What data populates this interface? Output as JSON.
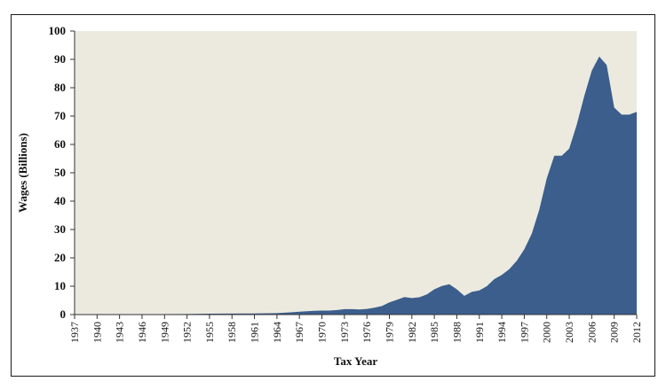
{
  "chart_data": {
    "type": "area",
    "title": "",
    "xlabel": "Tax Year",
    "ylabel": "Wages (Billions)",
    "xlim": [
      1937,
      2012
    ],
    "ylim": [
      0,
      100
    ],
    "yticks": [
      0,
      10,
      20,
      30,
      40,
      50,
      60,
      70,
      80,
      90,
      100
    ],
    "xticks": [
      "1937",
      "1940",
      "1943",
      "1946",
      "1949",
      "1952",
      "1955",
      "1958",
      "1961",
      "1964",
      "1967",
      "1970",
      "1973",
      "1976",
      "1979",
      "1982",
      "1985",
      "1988",
      "1991",
      "1994",
      "1997",
      "2000",
      "2003",
      "2006",
      "2009",
      "2012"
    ],
    "grid": false,
    "legend": "none",
    "colors": {
      "fill": "#3b5e8c",
      "plot_background": "#eceadf",
      "axis": "#333333"
    },
    "x": [
      1937,
      1940,
      1943,
      1946,
      1949,
      1952,
      1955,
      1958,
      1961,
      1964,
      1966,
      1967,
      1968,
      1969,
      1970,
      1971,
      1972,
      1973,
      1974,
      1975,
      1976,
      1977,
      1978,
      1979,
      1980,
      1981,
      1982,
      1983,
      1984,
      1985,
      1986,
      1987,
      1988,
      1989,
      1990,
      1991,
      1992,
      1993,
      1994,
      1995,
      1996,
      1997,
      1998,
      1999,
      2000,
      2001,
      2002,
      2003,
      2004,
      2005,
      2006,
      2007,
      2008,
      2009,
      2010,
      2011,
      2012
    ],
    "values": [
      0.05,
      0.08,
      0.1,
      0.12,
      0.15,
      0.2,
      0.3,
      0.35,
      0.4,
      0.5,
      0.8,
      1.0,
      1.2,
      1.3,
      1.4,
      1.4,
      1.6,
      1.9,
      1.9,
      1.8,
      2.0,
      2.4,
      3.0,
      4.3,
      5.2,
      6.2,
      5.8,
      6.1,
      7.1,
      8.9,
      10.1,
      10.7,
      8.9,
      6.6,
      8.0,
      8.5,
      10.0,
      12.5,
      14.0,
      16.0,
      19.0,
      23.0,
      28.5,
      37.0,
      48.0,
      56.0,
      56.0,
      58.5,
      67.0,
      77.0,
      86.0,
      91.0,
      88.0,
      73.0,
      70.5,
      70.5,
      71.5
    ]
  }
}
